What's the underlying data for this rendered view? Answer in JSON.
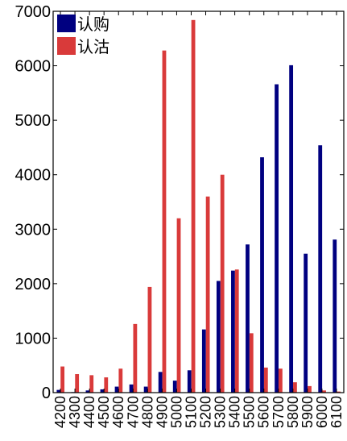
{
  "chart_data": {
    "type": "bar",
    "title": "",
    "xlabel": "",
    "ylabel": "",
    "ylim": [
      0,
      7000
    ],
    "yticks": [
      0,
      1000,
      2000,
      3000,
      4000,
      5000,
      6000,
      7000
    ],
    "grid": false,
    "legend_position": "top-left",
    "categories": [
      "4200",
      "4300",
      "4400",
      "4500",
      "4600",
      "4700",
      "4800",
      "4900",
      "5000",
      "5100",
      "5200",
      "5300",
      "5400",
      "5500",
      "5600",
      "5700",
      "5800",
      "5900",
      "6000",
      "6100"
    ],
    "series": [
      {
        "name": "认购",
        "color": "#000080",
        "values": [
          50,
          10,
          40,
          60,
          110,
          150,
          110,
          380,
          220,
          410,
          1160,
          2050,
          2240,
          2720,
          4320,
          5660,
          6010,
          2550,
          4540,
          2810
        ]
      },
      {
        "name": "认沽",
        "color": "#d93a3a",
        "values": [
          480,
          340,
          320,
          280,
          440,
          1260,
          1940,
          6280,
          3200,
          6840,
          3600,
          4000,
          2260,
          1090,
          460,
          440,
          190,
          120,
          40,
          20
        ]
      }
    ]
  }
}
